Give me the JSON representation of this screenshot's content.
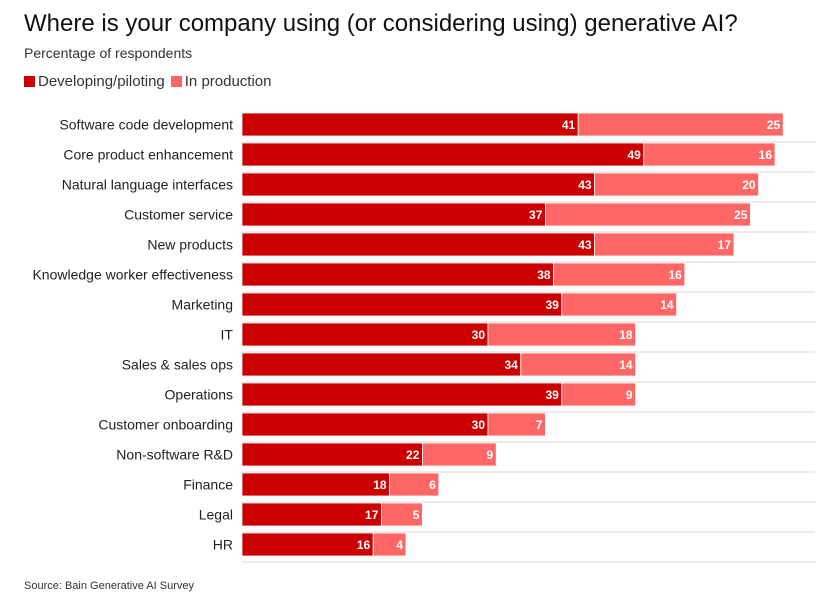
{
  "title": "Where is your company using (or considering using) generative AI?",
  "subtitle": "Percentage of respondents",
  "source": "Source: Bain Generative AI Survey",
  "colors": {
    "developing": "#cc0000",
    "production": "#ff6666",
    "grid": "#d9d9d9"
  },
  "legend": [
    {
      "name": "Developing/piloting",
      "color": "#cc0000"
    },
    {
      "name": "In production",
      "color": "#ff6666"
    }
  ],
  "chart_data": {
    "type": "bar",
    "orientation": "horizontal",
    "stacked": true,
    "categories": [
      "Software code development",
      "Core product enhancement",
      "Natural language interfaces",
      "Customer service",
      "New products",
      "Knowledge worker effectiveness",
      "Marketing",
      "IT",
      "Sales & sales ops",
      "Operations",
      "Customer onboarding",
      "Non-software R&D",
      "Finance",
      "Legal",
      "HR"
    ],
    "series": [
      {
        "name": "Developing/piloting",
        "values": [
          41,
          49,
          43,
          37,
          43,
          38,
          39,
          30,
          34,
          39,
          30,
          22,
          18,
          17,
          16
        ]
      },
      {
        "name": "In production",
        "values": [
          25,
          16,
          20,
          25,
          17,
          16,
          14,
          18,
          14,
          9,
          7,
          9,
          6,
          5,
          4
        ]
      }
    ],
    "xlim": [
      0,
      70
    ],
    "grid": true,
    "legend_position": "top-left"
  }
}
